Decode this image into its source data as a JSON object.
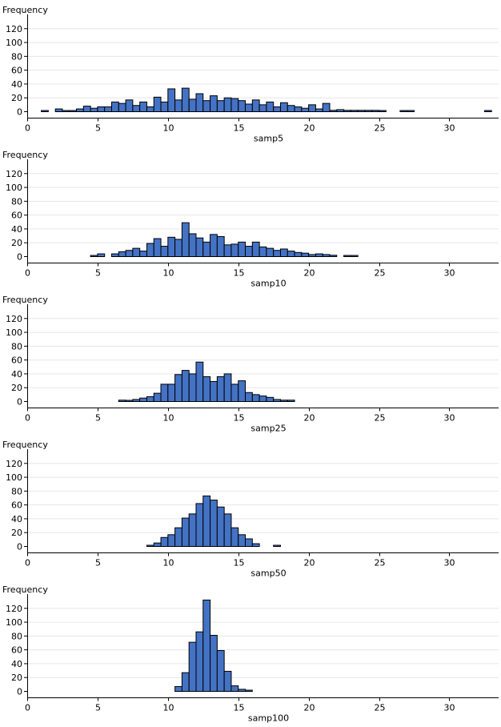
{
  "colors": {
    "bar": "#4472c4",
    "bar_outline": "#000000",
    "grid": "#e6e6e6",
    "axis": "#000000"
  },
  "chart_data": [
    {
      "type": "bar",
      "ylabel": "Frequency",
      "xlabel": "samp5",
      "xlim": [
        0,
        33.5
      ],
      "ylim": [
        0,
        140
      ],
      "xticks": [
        0,
        5,
        10,
        15,
        20,
        25,
        30
      ],
      "yticks": [
        0,
        20,
        40,
        60,
        80,
        100,
        120
      ],
      "bin_width": 0.5,
      "bins": [
        [
          1.0,
          1
        ],
        [
          2.0,
          4
        ],
        [
          2.5,
          1
        ],
        [
          3.0,
          1
        ],
        [
          3.5,
          4
        ],
        [
          4.0,
          8
        ],
        [
          4.5,
          5
        ],
        [
          5.0,
          7
        ],
        [
          5.5,
          7
        ],
        [
          6.0,
          14
        ],
        [
          6.5,
          12
        ],
        [
          7.0,
          17
        ],
        [
          7.5,
          9
        ],
        [
          8.0,
          14
        ],
        [
          8.5,
          7
        ],
        [
          9.0,
          21
        ],
        [
          9.5,
          14
        ],
        [
          10.0,
          33
        ],
        [
          10.5,
          17
        ],
        [
          11.0,
          34
        ],
        [
          11.5,
          18
        ],
        [
          12.0,
          26
        ],
        [
          12.5,
          16
        ],
        [
          13.0,
          23
        ],
        [
          13.5,
          16
        ],
        [
          14.0,
          20
        ],
        [
          14.5,
          19
        ],
        [
          15.0,
          16
        ],
        [
          15.5,
          11
        ],
        [
          16.0,
          17
        ],
        [
          16.5,
          10
        ],
        [
          17.0,
          14
        ],
        [
          17.5,
          7
        ],
        [
          18.0,
          13
        ],
        [
          18.5,
          9
        ],
        [
          19.0,
          7
        ],
        [
          19.5,
          5
        ],
        [
          20.0,
          10
        ],
        [
          20.5,
          4
        ],
        [
          21.0,
          12
        ],
        [
          21.5,
          2
        ],
        [
          22.0,
          3
        ],
        [
          22.5,
          2
        ],
        [
          23.0,
          2
        ],
        [
          23.5,
          2
        ],
        [
          24.0,
          2
        ],
        [
          24.5,
          2
        ],
        [
          25.0,
          1
        ],
        [
          26.5,
          1
        ],
        [
          27.0,
          1
        ],
        [
          32.5,
          1
        ]
      ]
    },
    {
      "type": "bar",
      "ylabel": "Frequency",
      "xlabel": "samp10",
      "xlim": [
        0,
        33.5
      ],
      "ylim": [
        0,
        140
      ],
      "xticks": [
        0,
        5,
        10,
        15,
        20,
        25,
        30
      ],
      "yticks": [
        0,
        20,
        40,
        60,
        80,
        100,
        120
      ],
      "bin_width": 0.5,
      "bins": [
        [
          4.5,
          1
        ],
        [
          5.0,
          4
        ],
        [
          6.0,
          4
        ],
        [
          6.5,
          7
        ],
        [
          7.0,
          9
        ],
        [
          7.5,
          12
        ],
        [
          8.0,
          8
        ],
        [
          8.5,
          19
        ],
        [
          9.0,
          26
        ],
        [
          9.5,
          15
        ],
        [
          10.0,
          28
        ],
        [
          10.5,
          25
        ],
        [
          11.0,
          49
        ],
        [
          11.5,
          33
        ],
        [
          12.0,
          27
        ],
        [
          12.5,
          21
        ],
        [
          13.0,
          32
        ],
        [
          13.5,
          29
        ],
        [
          14.0,
          17
        ],
        [
          14.5,
          18
        ],
        [
          15.0,
          21
        ],
        [
          15.5,
          15
        ],
        [
          16.0,
          21
        ],
        [
          16.5,
          14
        ],
        [
          17.0,
          12
        ],
        [
          17.5,
          9
        ],
        [
          18.0,
          11
        ],
        [
          18.5,
          8
        ],
        [
          19.0,
          6
        ],
        [
          19.5,
          5
        ],
        [
          20.0,
          3
        ],
        [
          20.5,
          4
        ],
        [
          21.0,
          3
        ],
        [
          21.5,
          2
        ],
        [
          22.5,
          1
        ],
        [
          23.0,
          1
        ]
      ]
    },
    {
      "type": "bar",
      "ylabel": "Frequency",
      "xlabel": "samp25",
      "xlim": [
        0,
        33.5
      ],
      "ylim": [
        0,
        140
      ],
      "xticks": [
        0,
        5,
        10,
        15,
        20,
        25,
        30
      ],
      "yticks": [
        0,
        20,
        40,
        60,
        80,
        100,
        120
      ],
      "bin_width": 0.5,
      "bins": [
        [
          6.5,
          2
        ],
        [
          7.0,
          1
        ],
        [
          7.5,
          3
        ],
        [
          8.0,
          5
        ],
        [
          8.5,
          7
        ],
        [
          9.0,
          12
        ],
        [
          9.5,
          25
        ],
        [
          10.0,
          25
        ],
        [
          10.5,
          39
        ],
        [
          11.0,
          45
        ],
        [
          11.5,
          40
        ],
        [
          12.0,
          57
        ],
        [
          12.5,
          36
        ],
        [
          13.0,
          29
        ],
        [
          13.5,
          36
        ],
        [
          14.0,
          40
        ],
        [
          14.5,
          25
        ],
        [
          15.0,
          30
        ],
        [
          15.5,
          13
        ],
        [
          16.0,
          10
        ],
        [
          16.5,
          8
        ],
        [
          17.0,
          6
        ],
        [
          17.5,
          3
        ],
        [
          18.0,
          2
        ],
        [
          18.5,
          2
        ]
      ]
    },
    {
      "type": "bar",
      "ylabel": "Frequency",
      "xlabel": "samp50",
      "xlim": [
        0,
        33.5
      ],
      "ylim": [
        0,
        140
      ],
      "xticks": [
        0,
        5,
        10,
        15,
        20,
        25,
        30
      ],
      "yticks": [
        0,
        20,
        40,
        60,
        80,
        100,
        120
      ],
      "bin_width": 0.5,
      "bins": [
        [
          8.5,
          1
        ],
        [
          9.0,
          5
        ],
        [
          9.5,
          13
        ],
        [
          10.0,
          17
        ],
        [
          10.5,
          27
        ],
        [
          11.0,
          41
        ],
        [
          11.5,
          47
        ],
        [
          12.0,
          62
        ],
        [
          12.5,
          73
        ],
        [
          13.0,
          67
        ],
        [
          13.5,
          57
        ],
        [
          14.0,
          47
        ],
        [
          14.5,
          27
        ],
        [
          15.0,
          17
        ],
        [
          15.5,
          11
        ],
        [
          16.0,
          4
        ],
        [
          17.5,
          1
        ]
      ]
    },
    {
      "type": "bar",
      "ylabel": "Frequency",
      "xlabel": "samp100",
      "xlim": [
        0,
        33.5
      ],
      "ylim": [
        0,
        140
      ],
      "xticks": [
        0,
        5,
        10,
        15,
        20,
        25,
        30
      ],
      "yticks": [
        0,
        20,
        40,
        60,
        80,
        100,
        120
      ],
      "bin_width": 0.5,
      "bins": [
        [
          10.5,
          7
        ],
        [
          11.0,
          27
        ],
        [
          11.5,
          71
        ],
        [
          12.0,
          86
        ],
        [
          12.5,
          132
        ],
        [
          13.0,
          81
        ],
        [
          13.5,
          59
        ],
        [
          14.0,
          29
        ],
        [
          14.5,
          8
        ],
        [
          15.0,
          3
        ],
        [
          15.5,
          1
        ]
      ]
    }
  ]
}
